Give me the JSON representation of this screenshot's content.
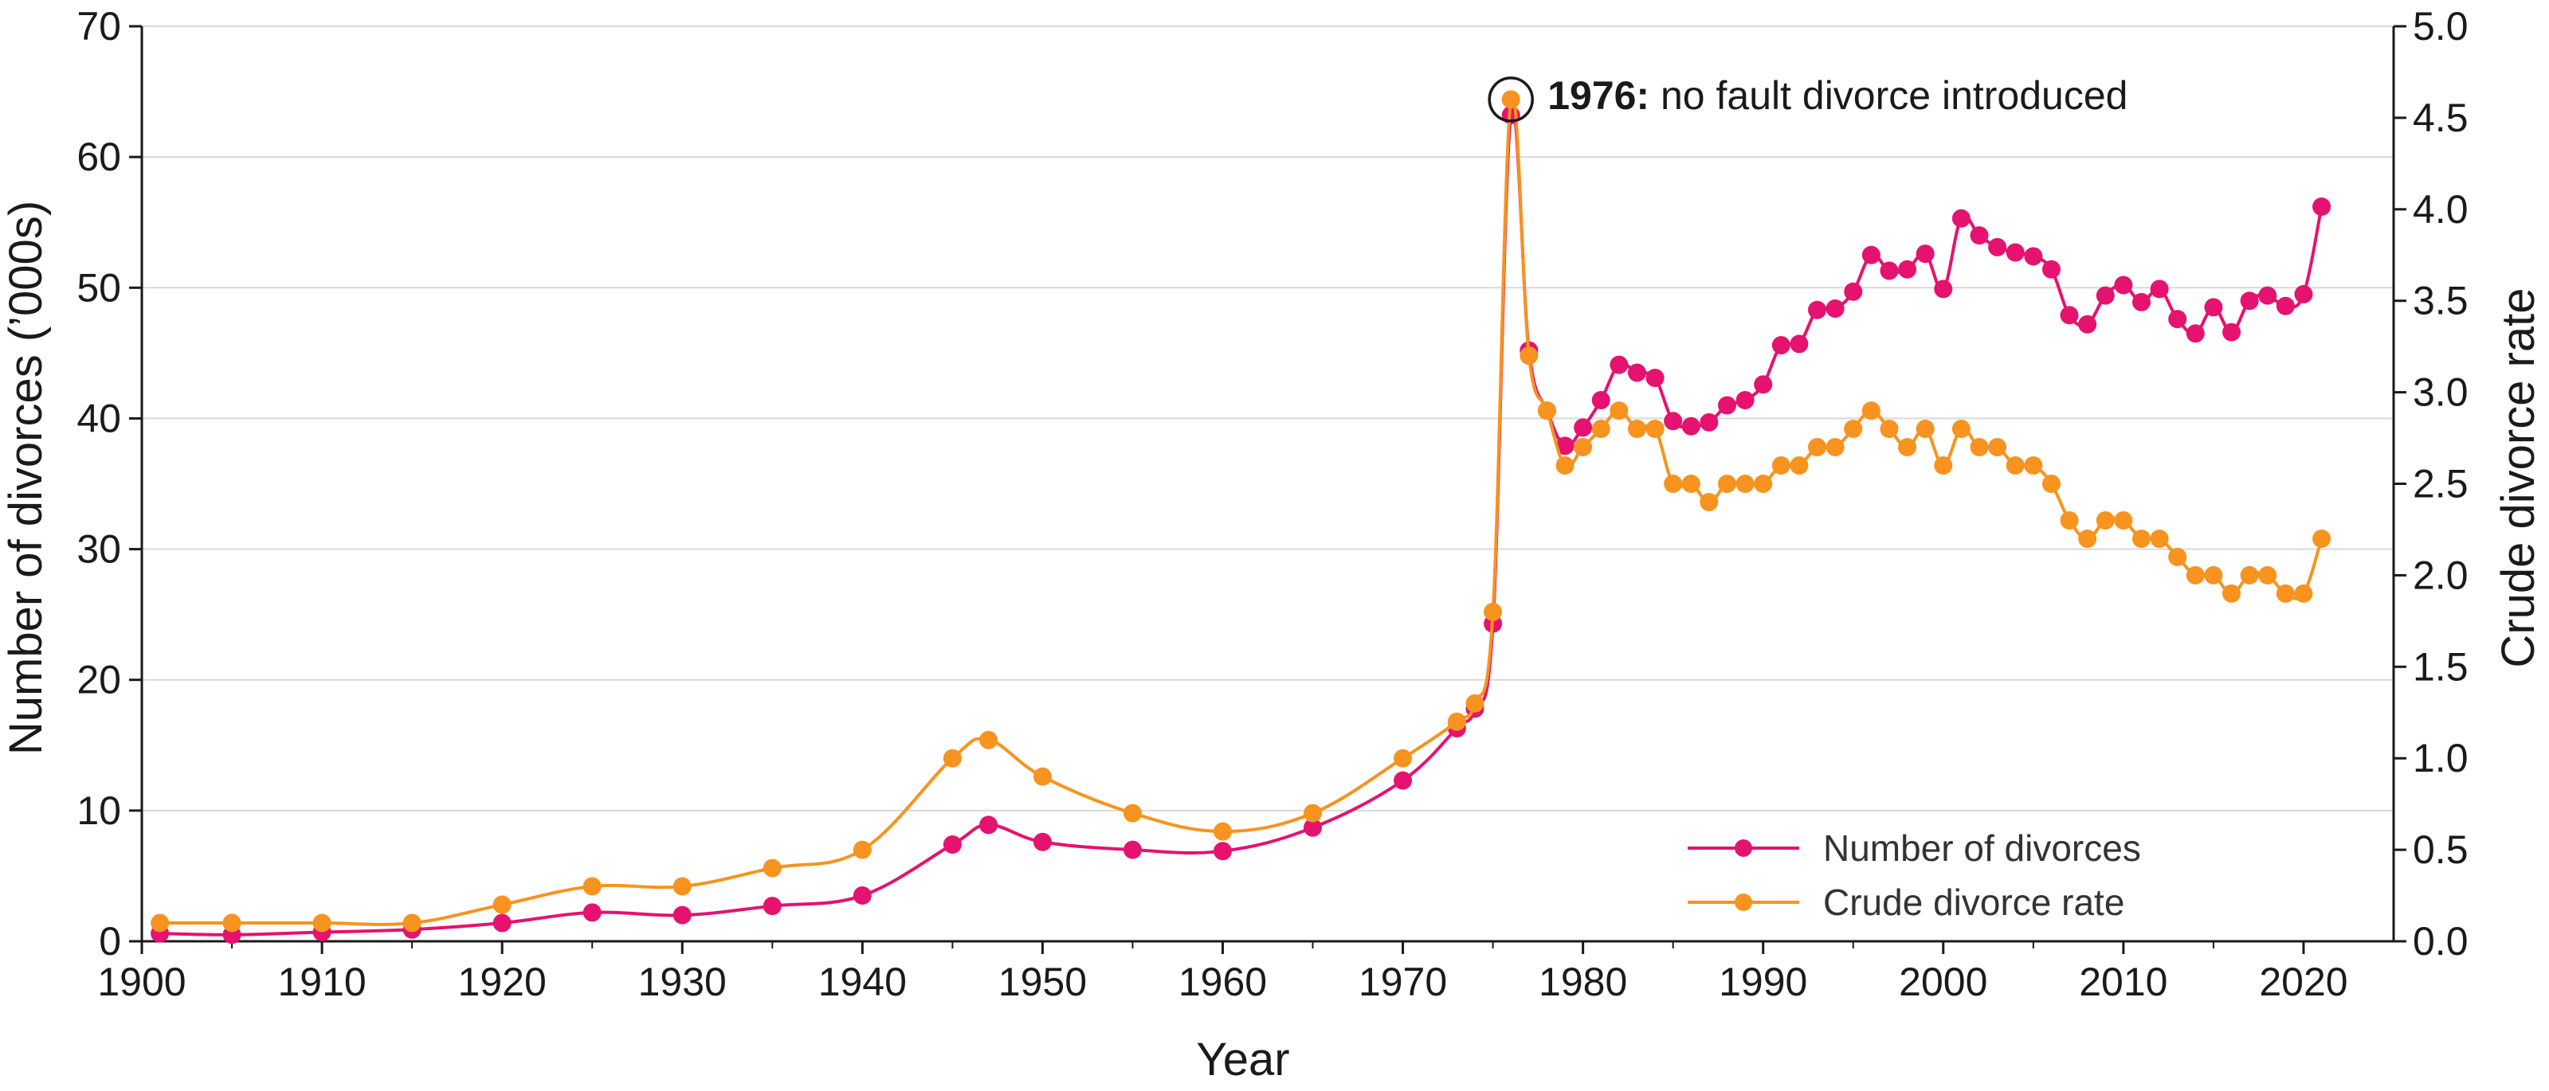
{
  "colors": {
    "divorces": "#e5126f",
    "rate": "#f7931e",
    "grid": "#d9d9d9",
    "axis": "#1a1a1a"
  },
  "chart_data": {
    "type": "line",
    "xlabel": "Year",
    "ylabel_left": "Number of divorces (’000s)",
    "ylabel_right": "Crude divorce rate",
    "xlim": [
      1900,
      2025
    ],
    "ylim_left": [
      0,
      70
    ],
    "ylim_right": [
      0,
      5.0
    ],
    "x_ticks": [
      1900,
      1910,
      1920,
      1930,
      1940,
      1950,
      1960,
      1970,
      1980,
      1990,
      2000,
      2010,
      2020
    ],
    "y_ticks_left": [
      0,
      10,
      20,
      30,
      40,
      50,
      60,
      70
    ],
    "y_ticks_right": [
      "0.0",
      "0.5",
      "1.0",
      "1.5",
      "2.0",
      "2.5",
      "3.0",
      "3.5",
      "4.0",
      "4.5",
      "5.0"
    ],
    "grid": true,
    "legend_position": "bottom-right",
    "series": [
      {
        "name": "Number of divorces",
        "axis": "left",
        "color": "#e5126f",
        "x": [
          1901,
          1905,
          1910,
          1915,
          1920,
          1925,
          1930,
          1935,
          1940,
          1945,
          1947,
          1950,
          1955,
          1960,
          1965,
          1970,
          1973,
          1974,
          1975,
          1976,
          1977,
          1978,
          1979,
          1980,
          1981,
          1982,
          1983,
          1984,
          1985,
          1986,
          1987,
          1988,
          1989,
          1990,
          1991,
          1992,
          1993,
          1994,
          1995,
          1996,
          1997,
          1998,
          1999,
          2000,
          2001,
          2002,
          2003,
          2004,
          2005,
          2006,
          2007,
          2008,
          2009,
          2010,
          2011,
          2012,
          2013,
          2014,
          2015,
          2016,
          2017,
          2018,
          2019,
          2020,
          2021
        ],
        "y": [
          0.6,
          0.5,
          0.7,
          0.9,
          1.4,
          2.2,
          2.0,
          2.7,
          3.5,
          7.4,
          8.9,
          7.6,
          7.0,
          6.9,
          8.7,
          12.3,
          16.3,
          17.8,
          24.3,
          63.2,
          45.2,
          40.6,
          37.9,
          39.3,
          41.4,
          44.1,
          43.5,
          43.1,
          39.8,
          39.4,
          39.7,
          41.0,
          41.4,
          42.6,
          45.6,
          45.7,
          48.3,
          48.4,
          49.7,
          52.5,
          51.3,
          51.4,
          52.6,
          49.9,
          55.3,
          54.0,
          53.1,
          52.7,
          52.4,
          51.4,
          47.9,
          47.2,
          49.4,
          50.2,
          48.9,
          49.9,
          47.6,
          46.5,
          48.5,
          46.6,
          49.0,
          49.4,
          48.6,
          49.5,
          56.2
        ]
      },
      {
        "name": "Crude divorce rate",
        "axis": "right",
        "color": "#f7931e",
        "x": [
          1901,
          1905,
          1910,
          1915,
          1920,
          1925,
          1930,
          1935,
          1940,
          1945,
          1947,
          1950,
          1955,
          1960,
          1965,
          1970,
          1973,
          1974,
          1975,
          1976,
          1977,
          1978,
          1979,
          1980,
          1981,
          1982,
          1983,
          1984,
          1985,
          1986,
          1987,
          1988,
          1989,
          1990,
          1991,
          1992,
          1993,
          1994,
          1995,
          1996,
          1997,
          1998,
          1999,
          2000,
          2001,
          2002,
          2003,
          2004,
          2005,
          2006,
          2007,
          2008,
          2009,
          2010,
          2011,
          2012,
          2013,
          2014,
          2015,
          2016,
          2017,
          2018,
          2019,
          2020,
          2021
        ],
        "y": [
          0.1,
          0.1,
          0.1,
          0.1,
          0.2,
          0.3,
          0.3,
          0.4,
          0.5,
          1.0,
          1.1,
          0.9,
          0.7,
          0.6,
          0.7,
          1.0,
          1.2,
          1.3,
          1.8,
          4.6,
          3.2,
          2.9,
          2.6,
          2.7,
          2.8,
          2.9,
          2.8,
          2.8,
          2.5,
          2.5,
          2.4,
          2.5,
          2.5,
          2.5,
          2.6,
          2.6,
          2.7,
          2.7,
          2.8,
          2.9,
          2.8,
          2.7,
          2.8,
          2.6,
          2.8,
          2.7,
          2.7,
          2.6,
          2.6,
          2.5,
          2.3,
          2.2,
          2.3,
          2.3,
          2.2,
          2.2,
          2.1,
          2.0,
          2.0,
          1.9,
          2.0,
          2.0,
          1.9,
          1.9,
          2.2
        ]
      }
    ],
    "annotation": {
      "year": 1976,
      "bold": "1976:",
      "text": " no fault divorce introduced"
    },
    "legend": {
      "divorces": "Number of divorces",
      "rate": "Crude divorce rate"
    }
  }
}
